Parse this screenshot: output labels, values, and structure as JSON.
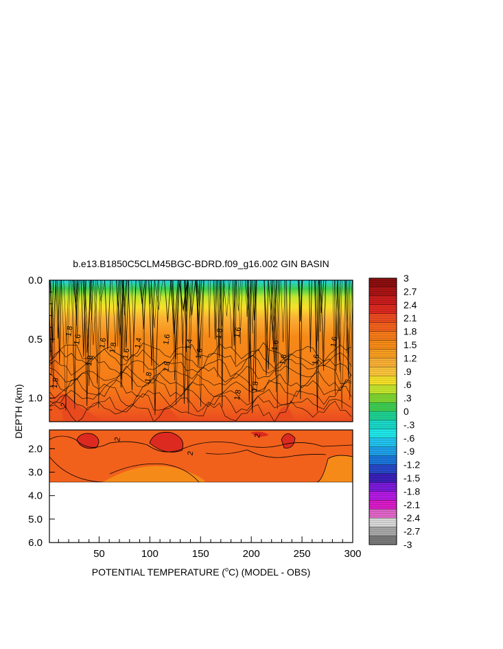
{
  "chart_data": {
    "type": "heatmap",
    "title": "b.e13.B1850C5CLM45BGC-BDRD.f09_g16.002 GIN BASIN",
    "xlabel": "POTENTIAL TEMPERATURE (°C) (MODEL - OBS)",
    "xlabel_parts": {
      "pre": "POTENTIAL TEMPERATURE (",
      "sup": "o",
      "post": "C) (MODEL - OBS)"
    },
    "ylabel": "DEPTH (km)",
    "xlim": [
      1,
      300
    ],
    "x_ticks": [
      "50",
      "100",
      "150",
      "200",
      "250",
      "300"
    ],
    "x_tick_values": [
      50,
      100,
      150,
      200,
      250,
      300
    ],
    "y_panels": [
      {
        "name": "upper",
        "ylim": [
          0.0,
          1.2
        ],
        "ticks": [
          "0.0",
          "0.5",
          "1.0"
        ],
        "tick_values": [
          0.0,
          0.5,
          1.0
        ]
      },
      {
        "name": "lower",
        "ylim": [
          1.2,
          6.0
        ],
        "ticks": [
          "2.0",
          "3.0",
          "4.0",
          "5.0",
          "6.0"
        ],
        "tick_values": [
          2.0,
          3.0,
          4.0,
          5.0,
          6.0
        ]
      }
    ],
    "data_bottom_depth": 3.4,
    "contour_labels": [
      {
        "text": "1.8",
        "x": 8,
        "y": 0.92
      },
      {
        "text": "2",
        "x": 17,
        "y": 1.08
      },
      {
        "text": "1.8",
        "x": 22,
        "y": 0.48
      },
      {
        "text": "1.6",
        "x": 30,
        "y": 0.55
      },
      {
        "text": "1.8",
        "x": 42,
        "y": 0.73
      },
      {
        "text": "1.6",
        "x": 55,
        "y": 0.58
      },
      {
        "text": "1.8",
        "x": 65,
        "y": 0.62
      },
      {
        "text": "1.6",
        "x": 78,
        "y": 0.67
      },
      {
        "text": "1.4",
        "x": 90,
        "y": 0.58
      },
      {
        "text": "1.8",
        "x": 100,
        "y": 0.87
      },
      {
        "text": "1.6",
        "x": 118,
        "y": 0.55
      },
      {
        "text": "1.8",
        "x": 118,
        "y": 0.78
      },
      {
        "text": "1.4",
        "x": 140,
        "y": 0.59
      },
      {
        "text": "1.6",
        "x": 150,
        "y": 0.67
      },
      {
        "text": "1.8",
        "x": 170,
        "y": 0.5
      },
      {
        "text": "1.6",
        "x": 188,
        "y": 0.49
      },
      {
        "text": "1.8",
        "x": 188,
        "y": 1.02
      },
      {
        "text": "1.8",
        "x": 205,
        "y": 0.95
      },
      {
        "text": "1.6",
        "x": 225,
        "y": 0.6
      },
      {
        "text": "1.8",
        "x": 233,
        "y": 0.72
      },
      {
        "text": "1.6",
        "x": 265,
        "y": 0.72
      },
      {
        "text": "1.6",
        "x": 283,
        "y": 0.57
      },
      {
        "text": "2",
        "x": 70,
        "y": 1.7
      },
      {
        "text": "2",
        "x": 142,
        "y": 2.3
      },
      {
        "text": "2",
        "x": 208,
        "y": 1.55
      }
    ],
    "colorbar": {
      "levels": [
        "3",
        "2.7",
        "2.4",
        "2.1",
        "1.8",
        "1.5",
        "1.2",
        ".9",
        ".6",
        ".3",
        "0",
        "-.3",
        "-.6",
        "-.9",
        "-1.2",
        "-1.5",
        "-1.8",
        "-2.1",
        "-2.4",
        "-2.7",
        "-3"
      ],
      "colors": [
        "#8c0f0f",
        "#a91414",
        "#c81d1d",
        "#dc2a20",
        "#ea4a1f",
        "#f1611c",
        "#f57a18",
        "#f68a18",
        "#f79d20",
        "#f9af35",
        "#fbc43b",
        "#f7e02a",
        "#c5e62d",
        "#7fd631",
        "#3fce52",
        "#1ed293",
        "#1ad8c8",
        "#1fe8ea",
        "#22c3ee",
        "#1f9fe8",
        "#1b75d8",
        "#2748c8",
        "#3a1fb8",
        "#7a1ad8",
        "#b21ae3",
        "#d81cc7",
        "#e066c8",
        "#d8d8d8",
        "#a8a8a8",
        "#7a7a7a"
      ]
    },
    "grid": false,
    "legend": "right"
  }
}
